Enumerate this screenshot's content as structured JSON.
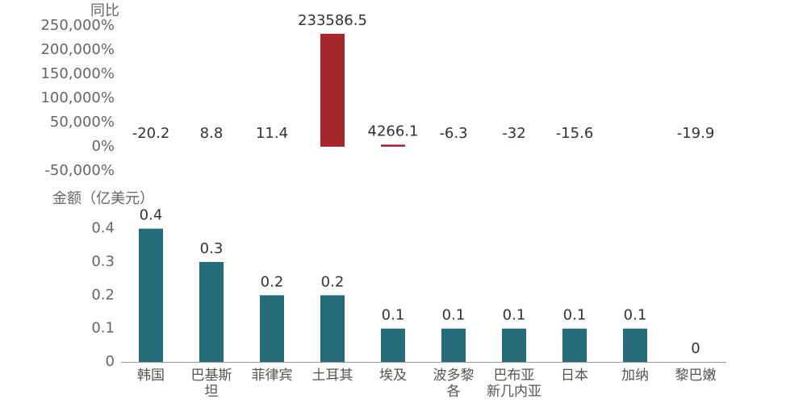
{
  "chart_data": [
    {
      "type": "bar",
      "y_label": "同比",
      "color": "#a4282b",
      "values": [
        -20.2,
        8.8,
        11.4,
        233586.5,
        4266.1,
        -6.3,
        -32,
        -15.6,
        null,
        -19.9
      ],
      "ylim": [
        -50000,
        250000
      ],
      "yticks": [
        {
          "value": -50000,
          "label": "-50,000%"
        },
        {
          "value": 0,
          "label": "0%"
        },
        {
          "value": 50000,
          "label": "50,000%"
        },
        {
          "value": 100000,
          "label": "100,000%"
        },
        {
          "value": 150000,
          "label": "150,000%"
        },
        {
          "value": 200000,
          "label": "200,000%"
        },
        {
          "value": 250000,
          "label": "250,000%"
        }
      ]
    },
    {
      "type": "bar",
      "y_label": "金额（亿美元）",
      "color": "#266b7a",
      "categories": [
        "韩国",
        "巴基斯坦",
        "菲律宾",
        "土耳其",
        "埃及",
        "波多黎各",
        "巴布亚新几内亚",
        "日本",
        "加纳",
        "黎巴嫩"
      ],
      "values": [
        0.4,
        0.3,
        0.2,
        0.2,
        0.1,
        0.1,
        0.1,
        0.1,
        0.1,
        0
      ],
      "ylim": [
        0,
        0.45
      ],
      "yticks": [
        0,
        0.1,
        0.2,
        0.3,
        0.4
      ]
    }
  ]
}
